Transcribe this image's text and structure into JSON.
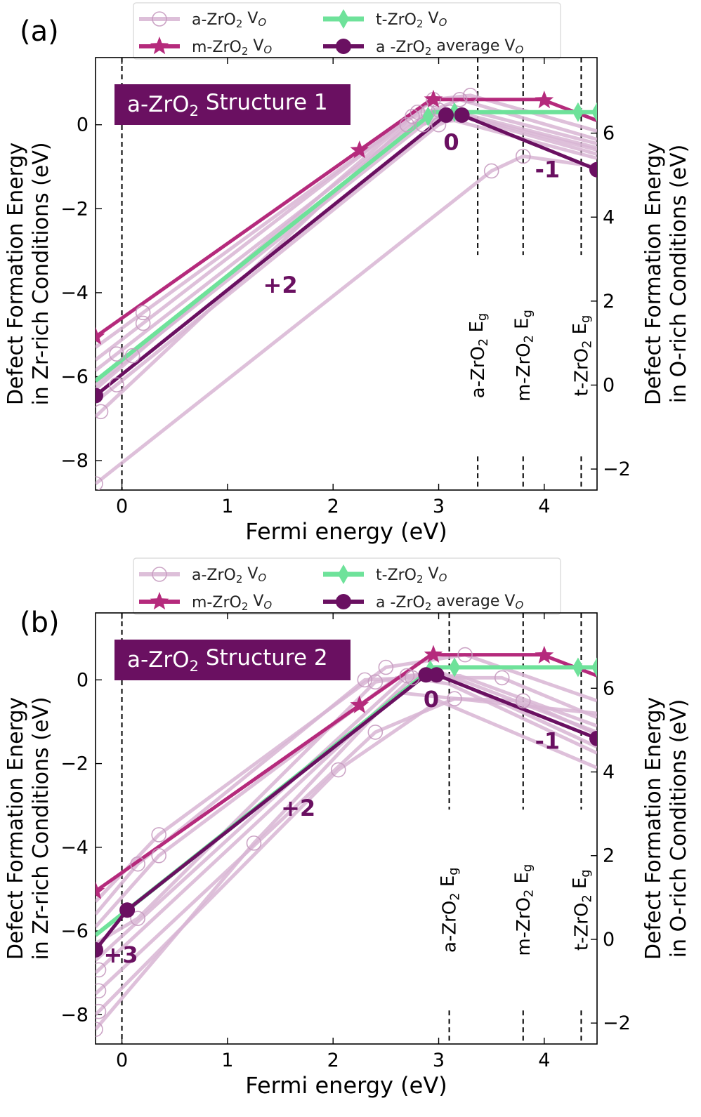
{
  "colors": {
    "a_indiv": "#d8b5d3",
    "m": "#b52a7c",
    "t": "#6ee29a",
    "avg": "#6a1061",
    "title_box": "#6a1061",
    "title_text": "#ffffff",
    "label_text": "#6a1061"
  },
  "legend": {
    "a": [
      "a-ZrO",
      "2",
      " V",
      "O"
    ],
    "t": [
      "t-ZrO",
      "2",
      " V",
      "O"
    ],
    "m": [
      "m-ZrO",
      "2",
      " V",
      "O"
    ],
    "avg": [
      "a -ZrO",
      "2",
      " average V",
      "O"
    ]
  },
  "chart_data": [
    {
      "type": "line",
      "panel_label": "(a)",
      "title": [
        "a-ZrO",
        "2",
        " Structure 1"
      ],
      "xlabel": "Fermi energy (eV)",
      "ylabel": [
        "Defect Formation Energy",
        "in Zr-rich Conditions (eV)"
      ],
      "ylabel_right": [
        "Defect Formation Energy",
        "in O-rich Conditions (eV)"
      ],
      "xlim": [
        -0.25,
        4.5
      ],
      "ylim": [
        -8.7,
        1.6
      ],
      "y2_offset": 6.2,
      "xticks": [
        0,
        1,
        2,
        3,
        4
      ],
      "yticks": [
        -8,
        -6,
        -4,
        -2,
        0
      ],
      "y2ticks": [
        -2,
        0,
        2,
        4,
        6
      ],
      "xtick_labels": [
        "0",
        "1",
        "2",
        "3",
        "4"
      ],
      "ytick_labels": [
        "−8",
        "−6",
        "−4",
        "−2",
        "0"
      ],
      "y2tick_labels": [
        "−2",
        "0",
        "2",
        "4",
        "6"
      ],
      "band_gaps": [
        {
          "x": 3.37,
          "label": [
            "a-ZrO",
            "2",
            " E",
            "g"
          ]
        },
        {
          "x": 3.8,
          "label": [
            "m-ZrO",
            "2",
            " E",
            "g"
          ]
        },
        {
          "x": 4.35,
          "label": [
            "t-ZrO",
            "2",
            " E",
            "g"
          ]
        }
      ],
      "charge_labels": [
        {
          "text": "+2",
          "x": 1.5,
          "y": -4.0
        },
        {
          "text": "0",
          "x": 3.12,
          "y": -0.6
        },
        {
          "text": "-1",
          "x": 4.03,
          "y": -1.25
        }
      ],
      "series": [
        {
          "name_key": "a",
          "role": "a_indiv",
          "points": [
            [
              -0.25,
              -5.85
            ],
            [
              2.9,
              0.3
            ],
            [
              3.2,
              0.6
            ],
            [
              4.5,
              -0.35
            ]
          ],
          "marker_x": [
            -0.05,
            2.9,
            3.2
          ]
        },
        {
          "name_key": "a",
          "role": "a_indiv",
          "points": [
            [
              -0.25,
              -5.6
            ],
            [
              2.95,
              0.6
            ],
            [
              3.3,
              0.7
            ],
            [
              4.5,
              -0.15
            ]
          ],
          "marker_x": [
            0.2,
            2.95,
            3.3
          ]
        },
        {
          "name_key": "a",
          "role": "a_indiv",
          "points": [
            [
              -0.25,
              -6.2
            ],
            [
              2.85,
              0.0
            ],
            [
              3.1,
              0.3
            ],
            [
              4.5,
              -0.6
            ]
          ],
          "marker_x": [
            0.1,
            2.85,
            3.1
          ]
        },
        {
          "name_key": "a",
          "role": "a_indiv",
          "points": [
            [
              -0.25,
              -6.6
            ],
            [
              3.0,
              0.0
            ],
            [
              3.25,
              0.25
            ],
            [
              4.5,
              -0.55
            ]
          ],
          "marker_x": [
            -0.05,
            3.0
          ]
        },
        {
          "name_key": "a",
          "role": "a_indiv",
          "points": [
            [
              -0.25,
              -6.95
            ],
            [
              2.7,
              0.0
            ],
            [
              3.15,
              0.1
            ],
            [
              4.5,
              -0.8
            ]
          ],
          "marker_x": [
            -0.2,
            2.7
          ]
        },
        {
          "name_key": "a",
          "role": "a_indiv",
          "points": [
            [
              -0.25,
              -5.3
            ],
            [
              2.75,
              0.2
            ],
            [
              3.35,
              0.3
            ],
            [
              4.5,
              -0.45
            ]
          ],
          "marker_x": [
            0.2,
            2.75
          ]
        },
        {
          "name_key": "a",
          "role": "a_indiv",
          "points": [
            [
              -0.25,
              -6.3
            ],
            [
              2.8,
              0.3
            ],
            [
              3.0,
              0.35
            ],
            [
              4.5,
              -0.7
            ]
          ],
          "marker_x": [
            2.8,
            3.0
          ]
        },
        {
          "name_key": "a",
          "role": "a_indiv",
          "points": [
            [
              -0.25,
              -8.55
            ],
            [
              3.5,
              -1.1
            ],
            [
              3.8,
              -0.75
            ],
            [
              4.5,
              -1.0
            ]
          ],
          "marker_x": [
            -0.25,
            3.5,
            3.8
          ]
        },
        {
          "name_key": "m",
          "role": "m",
          "points": [
            [
              -0.25,
              -5.05
            ],
            [
              2.93,
              0.6
            ],
            [
              3.98,
              0.6
            ],
            [
              4.5,
              0.1
            ]
          ],
          "marker_x": [
            -0.25,
            2.25,
            2.95,
            4.0
          ]
        },
        {
          "name_key": "t",
          "role": "t",
          "points": [
            [
              -0.25,
              -6.1
            ],
            [
              2.95,
              0.3
            ],
            [
              4.5,
              0.3
            ]
          ],
          "marker_x": [
            2.9,
            3.15,
            4.32,
            4.5
          ]
        },
        {
          "name_key": "avg",
          "role": "avg",
          "points": [
            [
              -0.25,
              -6.45
            ],
            [
              3.07,
              0.23
            ],
            [
              3.22,
              0.23
            ],
            [
              4.5,
              -1.07
            ]
          ],
          "marker_x": [
            -0.25,
            3.07,
            3.22,
            4.5
          ]
        }
      ]
    },
    {
      "type": "line",
      "panel_label": "(b)",
      "title": [
        "a-ZrO",
        "2",
        " Structure 2"
      ],
      "xlabel": "Fermi energy (eV)",
      "ylabel": [
        "Defect Formation Energy",
        "in Zr-rich Conditions (eV)"
      ],
      "ylabel_right": [
        "Defect Formation Energy",
        "in O-rich Conditions (eV)"
      ],
      "xlim": [
        -0.25,
        4.5
      ],
      "ylim": [
        -8.7,
        1.6
      ],
      "y2_offset": 6.2,
      "xticks": [
        0,
        1,
        2,
        3,
        4
      ],
      "yticks": [
        -8,
        -6,
        -4,
        -2,
        0
      ],
      "y2ticks": [
        -2,
        0,
        2,
        4,
        6
      ],
      "xtick_labels": [
        "0",
        "1",
        "2",
        "3",
        "4"
      ],
      "ytick_labels": [
        "−8",
        "−6",
        "−4",
        "−2",
        "0"
      ],
      "y2tick_labels": [
        "−2",
        "0",
        "2",
        "4",
        "6"
      ],
      "band_gaps": [
        {
          "x": 3.1,
          "label": [
            "a-ZrO",
            "2",
            " E",
            "g"
          ]
        },
        {
          "x": 3.8,
          "label": [
            "m-ZrO",
            "2",
            " E",
            "g"
          ]
        },
        {
          "x": 4.35,
          "label": [
            "t-ZrO",
            "2",
            " E",
            "g"
          ]
        }
      ],
      "charge_labels": [
        {
          "text": "+3",
          "x": -0.01,
          "y": -6.75
        },
        {
          "text": "+2",
          "x": 1.67,
          "y": -3.25
        },
        {
          "text": "0",
          "x": 2.93,
          "y": -0.65
        },
        {
          "text": "-1",
          "x": 4.03,
          "y": -1.65
        }
      ],
      "series": [
        {
          "name_key": "a",
          "role": "a_indiv",
          "points": [
            [
              -0.25,
              -5.3
            ],
            [
              0.35,
              -3.7
            ],
            [
              2.5,
              0.3
            ],
            [
              3.25,
              0.6
            ],
            [
              4.5,
              -0.5
            ]
          ],
          "marker_x": [
            0.35,
            2.5,
            3.25
          ]
        },
        {
          "name_key": "a",
          "role": "a_indiv",
          "points": [
            [
              -0.25,
              -5.6
            ],
            [
              0.15,
              -4.4
            ],
            [
              2.3,
              0.0
            ],
            [
              3.2,
              0.1
            ],
            [
              4.5,
              -1.1
            ]
          ],
          "marker_x": [
            0.15,
            2.3
          ]
        },
        {
          "name_key": "a",
          "role": "a_indiv",
          "points": [
            [
              -0.25,
              -5.9
            ],
            [
              0.35,
              -4.2
            ],
            [
              2.6,
              0.05
            ],
            [
              3.6,
              0.05
            ],
            [
              4.5,
              -0.9
            ]
          ],
          "marker_x": [
            0.35,
            3.6
          ]
        },
        {
          "name_key": "a",
          "role": "a_indiv",
          "points": [
            [
              -0.25,
              -6.3
            ],
            [
              0.15,
              -5.7
            ],
            [
              2.4,
              -0.05
            ],
            [
              3.0,
              0.2
            ],
            [
              4.5,
              -1.25
            ]
          ],
          "marker_x": [
            0.15,
            2.4
          ]
        },
        {
          "name_key": "a",
          "role": "a_indiv",
          "points": [
            [
              -0.25,
              -6.7
            ],
            [
              2.7,
              0.1
            ],
            [
              3.0,
              0.15
            ],
            [
              4.5,
              -1.6
            ]
          ],
          "marker_x": [
            2.7
          ]
        },
        {
          "name_key": "a",
          "role": "a_indiv",
          "points": [
            [
              -0.25,
              -7.0
            ],
            [
              2.75,
              0.05
            ],
            [
              3.1,
              -0.1
            ],
            [
              4.5,
              -1.75
            ]
          ],
          "marker_x": [
            -0.22,
            2.75
          ]
        },
        {
          "name_key": "a",
          "role": "a_indiv",
          "points": [
            [
              -0.25,
              -7.5
            ],
            [
              2.4,
              -1.25
            ],
            [
              3.15,
              -0.45
            ],
            [
              3.8,
              -0.5
            ],
            [
              4.5,
              -1.3
            ]
          ],
          "marker_x": [
            -0.22,
            2.4,
            3.15,
            3.8
          ]
        },
        {
          "name_key": "a",
          "role": "a_indiv",
          "points": [
            [
              -0.25,
              -8.0
            ],
            [
              2.05,
              -2.15
            ],
            [
              3.0,
              -0.5
            ],
            [
              4.5,
              -2.1
            ]
          ],
          "marker_x": [
            -0.22,
            2.05
          ]
        },
        {
          "name_key": "a",
          "role": "a_indiv",
          "points": [
            [
              -0.25,
              -8.35
            ],
            [
              1.25,
              -3.9
            ],
            [
              2.6,
              -0.3
            ],
            [
              4.5,
              -0.8
            ]
          ],
          "marker_x": [
            -0.25,
            1.25
          ]
        },
        {
          "name_key": "m",
          "role": "m",
          "points": [
            [
              -0.25,
              -5.05
            ],
            [
              2.93,
              0.6
            ],
            [
              3.98,
              0.6
            ],
            [
              4.5,
              0.1
            ]
          ],
          "marker_x": [
            -0.25,
            2.25,
            2.95,
            4.0
          ]
        },
        {
          "name_key": "t",
          "role": "t",
          "points": [
            [
              -0.25,
              -6.1
            ],
            [
              2.95,
              0.3
            ],
            [
              4.5,
              0.3
            ]
          ],
          "marker_x": [
            2.92,
            3.15,
            4.32,
            4.5
          ]
        },
        {
          "name_key": "avg",
          "role": "avg",
          "points": [
            [
              -0.25,
              -6.45
            ],
            [
              0.05,
              -5.5
            ],
            [
              2.88,
              0.12
            ],
            [
              2.98,
              0.12
            ],
            [
              4.5,
              -1.4
            ]
          ],
          "marker_x": [
            -0.25,
            0.05,
            2.88,
            2.98,
            4.5
          ]
        }
      ]
    }
  ]
}
